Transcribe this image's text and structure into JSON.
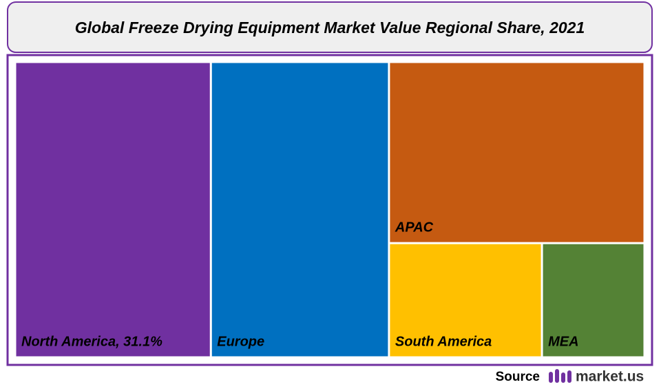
{
  "chart_data": {
    "type": "treemap",
    "title": "Global Freeze Drying Equipment  Market Value Regional Share, 2021",
    "labels": [
      "North America, 31.1%",
      "Europe",
      "APAC",
      "South America",
      "MEA"
    ],
    "values": [
      31.1,
      28.3,
      24.9,
      9.4,
      6.3
    ],
    "colors": [
      "#7030a0",
      "#0070c0",
      "#c55a11",
      "#ffc000",
      "#548235"
    ]
  },
  "footer": {
    "source": "Source",
    "brand": "market.us"
  }
}
